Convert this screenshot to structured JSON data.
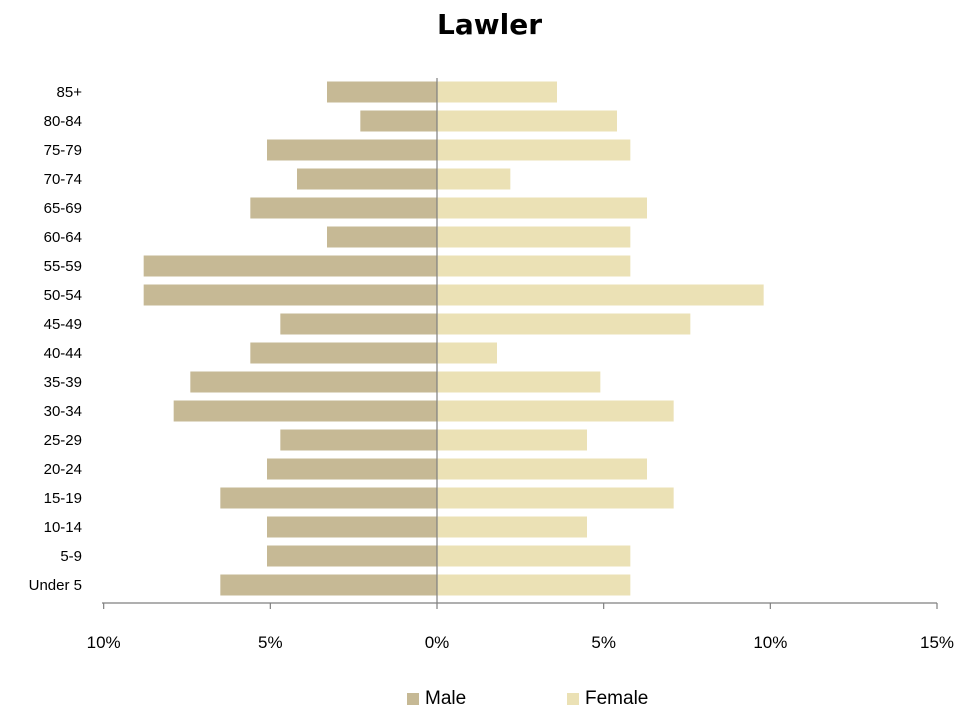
{
  "chart_data": {
    "type": "bar",
    "title": "Lawler",
    "orientation": "horizontal-population-pyramid",
    "categories": [
      "85+",
      "80-84",
      "75-79",
      "70-74",
      "65-69",
      "60-64",
      "55-59",
      "50-54",
      "45-49",
      "40-44",
      "35-39",
      "30-34",
      "25-29",
      "20-24",
      "15-19",
      "10-14",
      "5-9",
      "Under 5"
    ],
    "series": [
      {
        "name": "Male",
        "color": "#c6b995",
        "values": [
          3.3,
          2.3,
          5.1,
          4.2,
          5.6,
          3.3,
          8.8,
          8.8,
          4.7,
          5.6,
          7.4,
          7.9,
          4.7,
          5.1,
          6.5,
          5.1,
          5.1,
          6.5
        ]
      },
      {
        "name": "Female",
        "color": "#ebe1b5",
        "values": [
          3.6,
          5.4,
          5.8,
          2.2,
          6.3,
          5.8,
          5.8,
          9.8,
          7.6,
          1.8,
          4.9,
          7.1,
          4.5,
          6.3,
          7.1,
          4.5,
          5.8,
          5.8
        ]
      }
    ],
    "xaxis": {
      "range": [
        -10,
        15
      ],
      "ticks": [
        -10,
        -5,
        0,
        5,
        10,
        15
      ],
      "tick_labels": [
        "10%",
        "5%",
        "0%",
        "5%",
        "10%",
        "15%"
      ]
    },
    "legend_position": "bottom",
    "grid": false
  }
}
